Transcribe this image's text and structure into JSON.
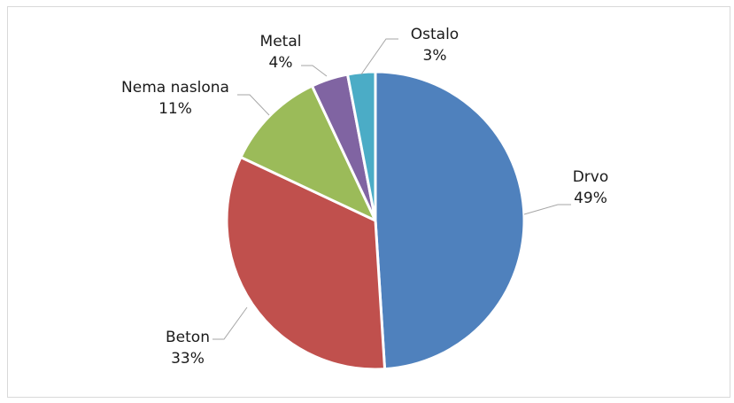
{
  "chart_data": {
    "type": "pie",
    "start_angle_deg": 0,
    "direction": "clockwise",
    "legend": "none",
    "slices": [
      {
        "label": "Drvo",
        "pct_label": "49%",
        "value": 49,
        "color": "#4f81bd"
      },
      {
        "label": "Beton",
        "pct_label": "33%",
        "value": 33,
        "color": "#c0504d"
      },
      {
        "label": "Nema naslona",
        "pct_label": "11%",
        "value": 11,
        "color": "#9bbb59"
      },
      {
        "label": "Metal",
        "pct_label": "4%",
        "value": 4,
        "color": "#8064a2"
      },
      {
        "label": "Ostalo",
        "pct_label": "3%",
        "value": 3,
        "color": "#4bacc6"
      }
    ]
  }
}
